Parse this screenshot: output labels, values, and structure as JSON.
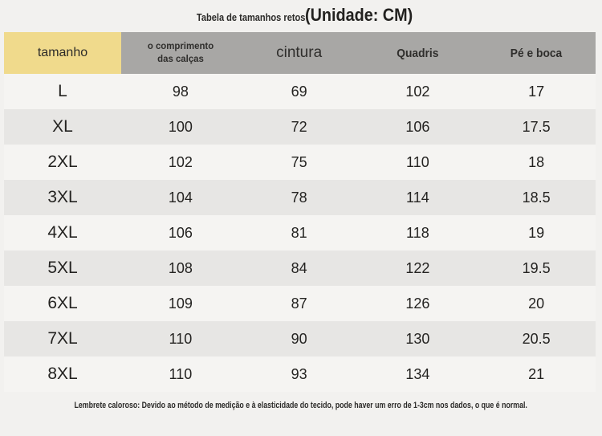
{
  "chart_data": {
    "type": "table",
    "title": "Tabela de tamanhos retos",
    "unit_label": "(Unidade: CM)",
    "columns": [
      "tamanho",
      "o comprimento das calças",
      "cintura",
      "Quadris",
      "Pé e boca"
    ],
    "rows": [
      [
        "L",
        "98",
        "69",
        "102",
        "17"
      ],
      [
        "XL",
        "100",
        "72",
        "106",
        "17.5"
      ],
      [
        "2XL",
        "102",
        "75",
        "110",
        "18"
      ],
      [
        "3XL",
        "104",
        "78",
        "114",
        "18.5"
      ],
      [
        "4XL",
        "106",
        "81",
        "118",
        "19"
      ],
      [
        "5XL",
        "108",
        "84",
        "122",
        "19.5"
      ],
      [
        "6XL",
        "109",
        "87",
        "126",
        "20"
      ],
      [
        "7XL",
        "110",
        "90",
        "130",
        "20.5"
      ],
      [
        "8XL",
        "110",
        "93",
        "134",
        "21"
      ]
    ],
    "footnote": "Lembrete caloroso: Devido ao método de medição e à elasticidade do tecido, pode haver um erro de 1-3cm nos dados, o que é normal.",
    "layout": {
      "header_style": "first column yellow, remaining columns gray",
      "row_striping": "alternating light and gray rows",
      "grid": "none"
    }
  },
  "colors": {
    "page_bg": "#F2F1EF",
    "header_yellow": "#F0DA8C",
    "header_gray": "#A8A7A5",
    "row_light": "#F5F4F2",
    "row_stripe": "#E7E6E4",
    "text": "#272625"
  }
}
